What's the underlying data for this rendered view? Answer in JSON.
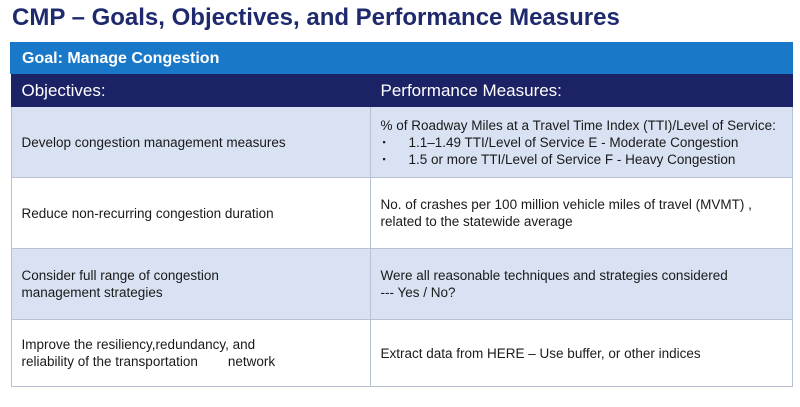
{
  "title": "CMP – Goals, Objectives, and Performance Measures",
  "goal": "Goal: Manage Congestion",
  "headers": {
    "objectives": "Objectives:",
    "measures": "Performance Measures:"
  },
  "rows": [
    {
      "objective": [
        "Develop congestion management measures"
      ],
      "measure_lead": "% of Roadway Miles at a Travel Time Index (TTI)/Level of Service:",
      "measure_bullets": [
        "1.1–1.49 TTI/Level of Service E - Moderate Congestion",
        "1.5 or more TTI/Level of Service F - Heavy Congestion"
      ]
    },
    {
      "objective": [
        "Reduce non-recurring congestion duration"
      ],
      "measure": [
        "No. of crashes per 100 million vehicle miles of travel (MVMT) ,",
        "related to the statewide average"
      ]
    },
    {
      "objective": [
        "Consider full range of congestion",
        "management strategies"
      ],
      "measure": [
        "Were all reasonable techniques and strategies considered",
        "--- Yes / No?"
      ]
    },
    {
      "objective_lines": {
        "line1": "Improve the resiliency,redundancy, and",
        "line2_a": "reliability of the transportation",
        "line2_b": "network"
      },
      "measure": [
        "Extract data from HERE – Use buffer, or other indices"
      ]
    }
  ],
  "colors": {
    "title": "#1f2a6e",
    "goal_bar": "#1a78c8",
    "header_bar": "#1c2266",
    "shaded_row": "#d8e2f2"
  },
  "icons": {
    "bullet": "square-bullet-icon"
  },
  "bullet_glyph": "▪"
}
